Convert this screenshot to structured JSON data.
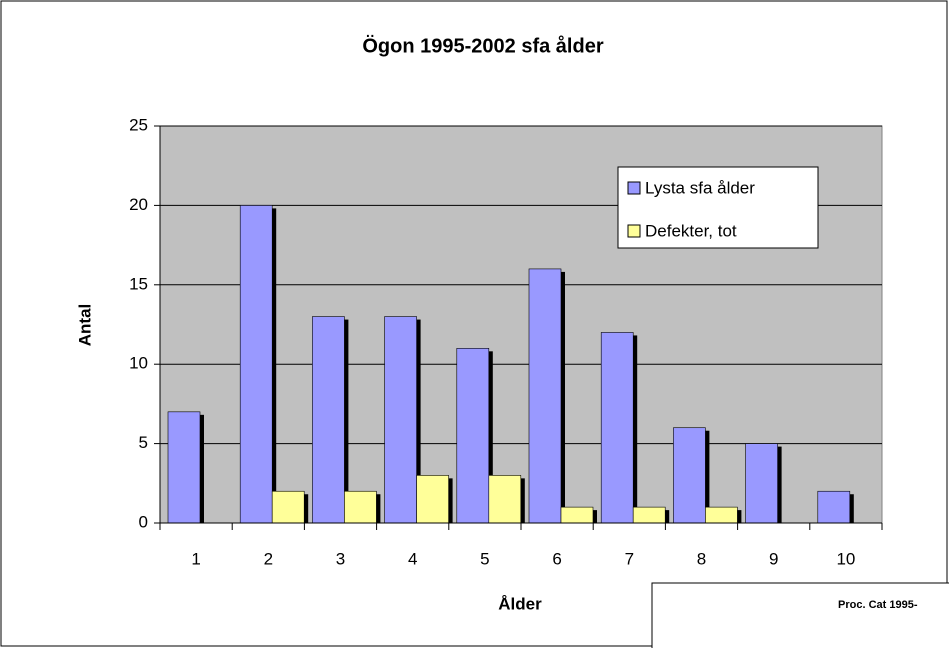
{
  "chart_data": {
    "type": "bar",
    "title": "Ögon 1995-2002 sfa ålder",
    "x_label": "Ålder",
    "y_label": "Antal",
    "categories": [
      "1",
      "2",
      "3",
      "4",
      "5",
      "6",
      "7",
      "8",
      "9",
      "10"
    ],
    "series": [
      {
        "name": "Lysta sfa ålder",
        "color": "#9999ff",
        "values": [
          7,
          20,
          13,
          13,
          11,
          16,
          12,
          6,
          5,
          2
        ]
      },
      {
        "name": "Defekter, tot",
        "color": "#ffff99",
        "values": [
          0,
          2,
          2,
          3,
          3,
          1,
          1,
          1,
          0,
          0
        ]
      }
    ],
    "ylim": [
      0,
      25
    ],
    "yticks": [
      0,
      5,
      10,
      15,
      20,
      25
    ],
    "grid": true,
    "legend": "upper right",
    "plot_background": "#c0c0c0"
  },
  "overlay": {
    "title": "Proc. Cat 1995-"
  }
}
